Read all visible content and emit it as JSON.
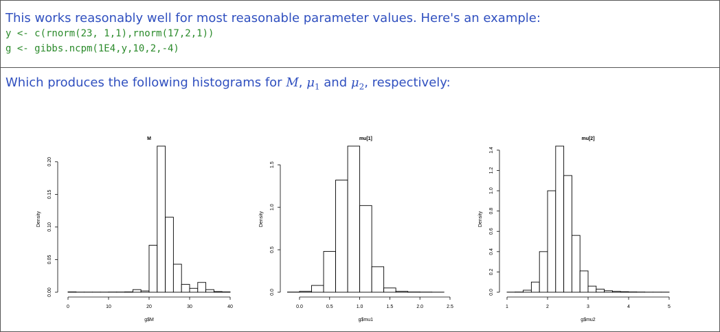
{
  "paragraph1": {
    "text": "This works reasonably well for most reasonable parameter values. Here's an example:",
    "code": [
      "y <- c(rnorm(23, 1,1),rnorm(17,2,1))",
      "g <- gibbs.ncpm(1E4,y,10,2,-4)"
    ]
  },
  "paragraph2": {
    "segments": [
      "Which produces the following histograms for ",
      "M",
      ", ",
      "μ",
      "1",
      " and ",
      "μ",
      "2",
      ", respectively:"
    ]
  },
  "chart_data": [
    {
      "type": "histogram",
      "title": "M",
      "x_label": "g$M",
      "y_label": "Density",
      "bins": [
        0,
        2,
        4,
        6,
        8,
        10,
        12,
        14,
        16,
        18,
        20,
        22,
        24,
        26,
        28,
        30,
        32,
        34,
        36,
        38,
        40
      ],
      "values": [
        0.0005,
        0.0002,
        0.0002,
        0.0002,
        0.0002,
        0.0003,
        0.0003,
        0.0005,
        0.004,
        0.002,
        0.072,
        0.224,
        0.115,
        0.043,
        0.012,
        0.006,
        0.015,
        0.004,
        0.001,
        0.0005
      ],
      "xlim": [
        0,
        40
      ],
      "xticks": [
        0,
        10,
        20,
        30,
        40
      ],
      "ylim": [
        0,
        0.224
      ],
      "yticks": [
        {
          "value": 0,
          "label": "0.00"
        },
        0.05,
        {
          "value": 0.1,
          "label": "0.10"
        },
        0.15,
        {
          "value": 0.2,
          "label": "0.20"
        }
      ],
      "color": "#ffffff"
    },
    {
      "type": "histogram",
      "title": "mu[1]",
      "x_label": "g$mu1",
      "y_label": "Density",
      "bins": [
        -0.2,
        0,
        0.2,
        0.4,
        0.6,
        0.8,
        1.0,
        1.2,
        1.4,
        1.6,
        1.8,
        2.0,
        2.2,
        2.4
      ],
      "values": [
        0.002,
        0.01,
        0.08,
        0.48,
        1.32,
        1.72,
        1.02,
        0.3,
        0.05,
        0.01,
        0.003,
        0.002,
        0.001
      ],
      "xlim": [
        -0.3,
        2.5
      ],
      "xticks": [
        {
          "value": 0,
          "label": "0.0"
        },
        0.5,
        {
          "value": 1,
          "label": "1.0"
        },
        1.5,
        {
          "value": 2,
          "label": "2.0"
        },
        2.5
      ],
      "ylim": [
        0,
        1.72
      ],
      "yticks": [
        {
          "value": 0,
          "label": "0.0"
        },
        0.5,
        {
          "value": 1,
          "label": "1.0"
        },
        1.5
      ],
      "color": "#ffffff"
    },
    {
      "type": "histogram",
      "title": "mu[2]",
      "x_label": "g$mu2",
      "y_label": "Density",
      "bins": [
        1.0,
        1.2,
        1.4,
        1.6,
        1.8,
        2.0,
        2.2,
        2.4,
        2.6,
        2.8,
        3.0,
        3.2,
        3.4,
        3.6,
        3.8,
        4.0,
        4.2,
        4.4,
        4.6,
        4.8,
        5.0
      ],
      "values": [
        0.001,
        0.002,
        0.02,
        0.1,
        0.4,
        1.0,
        1.44,
        1.15,
        0.56,
        0.21,
        0.06,
        0.03,
        0.015,
        0.008,
        0.005,
        0.003,
        0.002,
        0.001,
        0.001,
        0.001
      ],
      "xlim": [
        1,
        5
      ],
      "xticks": [
        1,
        2,
        3,
        4,
        5
      ],
      "ylim": [
        0,
        1.44
      ],
      "yticks": [
        {
          "value": 0,
          "label": "0.0"
        },
        0.2,
        0.4,
        0.6,
        0.8,
        {
          "value": 1,
          "label": "1.0"
        },
        1.2,
        1.4
      ],
      "color": "#ffffff"
    }
  ]
}
